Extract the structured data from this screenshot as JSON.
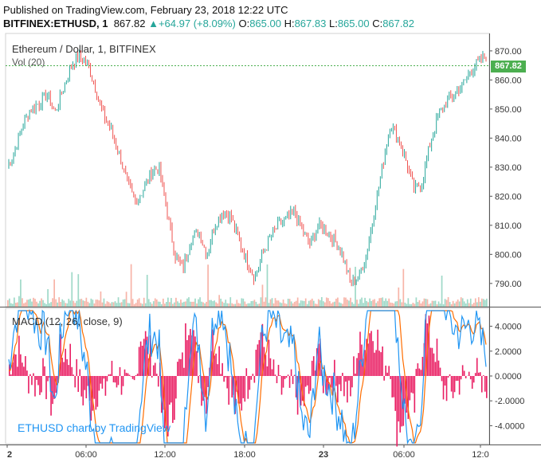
{
  "header": {
    "published": "Published on TradingView.com, February 23, 2018 12:22 UTC",
    "symbol": "BITFINEX:ETHUSD, 1",
    "last": "867.82",
    "change_arrow": "▲",
    "change": "+64.97 (+8.09%)",
    "o_label": "O:",
    "o_value": "865.00",
    "h_label": "H:",
    "h_value": "867.83",
    "l_label": "L:",
    "l_value": "865.00",
    "c_label": "C:",
    "c_value": "867.82"
  },
  "price_pane": {
    "title": "Ethereum / Dollar, 1, BITFINEX",
    "volume_label": "Vol (20)",
    "current_price_tag": "867.82",
    "y_ticks": [
      "870.00",
      "860.00",
      "850.00",
      "840.00",
      "830.00",
      "820.00",
      "810.00",
      "800.00",
      "790.00"
    ]
  },
  "macd_pane": {
    "title": "MACD (12, 26, close, 9)",
    "y_ticks": [
      "4.0000",
      "2.0000",
      "0.0000",
      "-2.0000",
      "-4.0000"
    ]
  },
  "time_axis": {
    "labels": [
      "2",
      "06:00",
      "12:00",
      "18:00",
      "23",
      "06:00",
      "12:0"
    ]
  },
  "watermark": "ETHUSD chart by TradingView",
  "colors": {
    "up": "#26a69a",
    "down": "#ef5350",
    "macd_line": "#2196f3",
    "signal_line": "#ff6d00",
    "histogram": "#e91e63",
    "price_tag": "#4caf50"
  },
  "chart_data": {
    "type": "line",
    "series": [
      {
        "values": [
          830,
          836,
          845,
          850,
          852,
          855,
          849,
          857,
          865,
          868,
          866,
          858,
          848,
          843,
          835,
          825,
          818,
          822,
          828,
          830,
          815,
          800,
          795,
          805,
          808,
          800,
          810,
          815,
          813,
          805,
          798,
          792,
          800,
          806,
          810,
          812,
          815,
          808,
          803,
          810,
          808,
          805,
          800,
          790,
          792,
          800,
          815,
          830,
          845,
          840,
          832,
          822,
          825,
          838,
          848,
          852,
          855,
          858,
          863,
          866,
          868
        ]
      }
    ],
    "ylim": [
      782,
      876
    ]
  }
}
